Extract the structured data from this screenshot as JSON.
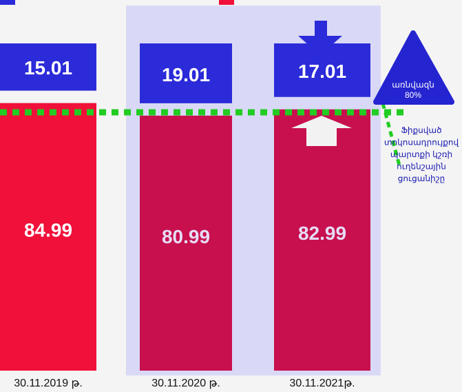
{
  "chart_data": {
    "type": "stacked-bar",
    "categories": [
      "30.11.2019 թ.",
      "30.11.2020 թ.",
      "30.11.2021թ."
    ],
    "series": [
      {
        "colors": [
          "#f0103a",
          "#c8104f",
          "#c8104f"
        ],
        "label_colors": [
          "#ffffff",
          "#e6dcf5",
          "#e6dcf5"
        ],
        "values": [
          84.99,
          80.99,
          82.99
        ]
      },
      {
        "colors": [
          "#2b2bd9",
          "#2b2bd9",
          "#2b2bd9"
        ],
        "label_colors": [
          "#ffffff",
          "#ffffff",
          "#ffffff"
        ],
        "values": [
          15.01,
          19.01,
          17.01
        ]
      }
    ],
    "ylim": [
      0,
      100
    ],
    "annotation": {
      "lines": [
        "առնվազն",
        "80%"
      ]
    },
    "note": {
      "lines": [
        "Ֆիքսված",
        "տոկոսադրույքով",
        "պարտքի կշռի",
        "ուղենշային",
        "ցուցանիշը"
      ]
    }
  }
}
